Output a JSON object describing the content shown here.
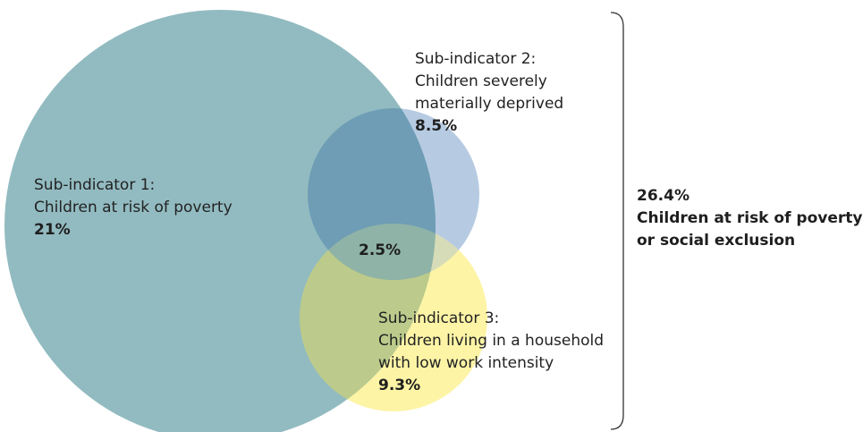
{
  "circles": [
    {
      "title": "Sub-indicator 1:",
      "description": "Children at risk of poverty",
      "value": "21%",
      "color": "#92bbc1"
    },
    {
      "title": "Sub-indicator 2:",
      "description_lines": [
        "Children severely",
        "materially deprived"
      ],
      "value": "8.5%",
      "color": "#b6cbe2"
    },
    {
      "title": "Sub-indicator 3:",
      "description_lines": [
        "Children living in a household",
        "with low work intensity"
      ],
      "value": "9.3%",
      "color": "#fdf4a6"
    }
  ],
  "overlap_value": "2.5%",
  "overlap_colors": {
    "c1_c2": "#6e9db5",
    "c1_c3": "#bccb8b"
  },
  "total": {
    "value": "26.4%",
    "label_lines": [
      "Children at risk of poverty",
      "or social exclusion"
    ]
  }
}
